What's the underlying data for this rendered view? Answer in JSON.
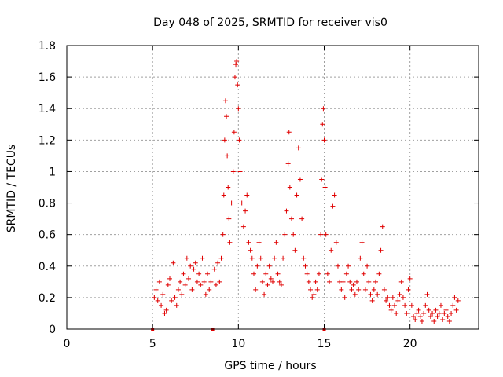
{
  "chart_data": {
    "type": "scatter",
    "title": "Day 048 of 2025, SRMTID for receiver vis0",
    "xlabel": "GPS time / hours",
    "ylabel": "SRMTID / TECUs",
    "xlim": [
      0,
      24
    ],
    "ylim": [
      0,
      1.8
    ],
    "x_ticks": [
      0,
      5,
      10,
      15,
      20
    ],
    "x_tick_labels": [
      "0",
      "5",
      "10",
      "15",
      "20"
    ],
    "y_ticks": [
      0,
      0.2,
      0.4,
      0.6,
      0.8,
      1,
      1.2,
      1.4,
      1.6,
      1.8
    ],
    "y_tick_labels": [
      "0",
      "0.2",
      "0.4",
      "0.6",
      "0.8",
      "1",
      "1.2",
      "1.4",
      "1.6",
      "1.8"
    ],
    "grid": true,
    "marker": "plus",
    "color": "#e00000",
    "series": [
      {
        "name": "SRMTID",
        "points": [
          [
            5.0,
            0.0
          ],
          [
            8.5,
            0.0
          ],
          [
            15.0,
            0.0
          ],
          [
            5.1,
            0.2
          ],
          [
            5.2,
            0.25
          ],
          [
            5.3,
            0.18
          ],
          [
            5.4,
            0.3
          ],
          [
            5.5,
            0.15
          ],
          [
            5.6,
            0.22
          ],
          [
            5.7,
            0.1
          ],
          [
            5.8,
            0.12
          ],
          [
            5.9,
            0.28
          ],
          [
            6.0,
            0.32
          ],
          [
            6.1,
            0.18
          ],
          [
            6.2,
            0.42
          ],
          [
            6.3,
            0.2
          ],
          [
            6.4,
            0.15
          ],
          [
            6.5,
            0.25
          ],
          [
            6.6,
            0.3
          ],
          [
            6.7,
            0.22
          ],
          [
            6.8,
            0.35
          ],
          [
            6.9,
            0.28
          ],
          [
            7.0,
            0.45
          ],
          [
            7.1,
            0.32
          ],
          [
            7.2,
            0.4
          ],
          [
            7.3,
            0.25
          ],
          [
            7.4,
            0.38
          ],
          [
            7.5,
            0.42
          ],
          [
            7.6,
            0.3
          ],
          [
            7.7,
            0.35
          ],
          [
            7.8,
            0.28
          ],
          [
            7.9,
            0.45
          ],
          [
            8.0,
            0.3
          ],
          [
            8.1,
            0.22
          ],
          [
            8.2,
            0.35
          ],
          [
            8.3,
            0.25
          ],
          [
            8.4,
            0.3
          ],
          [
            8.6,
            0.38
          ],
          [
            8.7,
            0.28
          ],
          [
            8.8,
            0.42
          ],
          [
            8.9,
            0.3
          ],
          [
            9.0,
            0.45
          ],
          [
            9.1,
            0.6
          ],
          [
            9.15,
            0.85
          ],
          [
            9.2,
            1.2
          ],
          [
            9.25,
            1.45
          ],
          [
            9.3,
            1.35
          ],
          [
            9.35,
            1.1
          ],
          [
            9.4,
            0.9
          ],
          [
            9.45,
            0.7
          ],
          [
            9.5,
            0.55
          ],
          [
            9.6,
            0.8
          ],
          [
            9.7,
            1.0
          ],
          [
            9.75,
            1.25
          ],
          [
            9.8,
            1.6
          ],
          [
            9.85,
            1.68
          ],
          [
            9.9,
            1.7
          ],
          [
            9.95,
            1.55
          ],
          [
            10.0,
            1.4
          ],
          [
            10.05,
            1.2
          ],
          [
            10.1,
            1.0
          ],
          [
            10.2,
            0.8
          ],
          [
            10.3,
            0.65
          ],
          [
            10.4,
            0.75
          ],
          [
            10.5,
            0.85
          ],
          [
            10.6,
            0.55
          ],
          [
            10.7,
            0.5
          ],
          [
            10.8,
            0.45
          ],
          [
            10.9,
            0.35
          ],
          [
            11.0,
            0.25
          ],
          [
            11.1,
            0.4
          ],
          [
            11.2,
            0.55
          ],
          [
            11.3,
            0.45
          ],
          [
            11.4,
            0.3
          ],
          [
            11.5,
            0.22
          ],
          [
            11.6,
            0.35
          ],
          [
            11.7,
            0.28
          ],
          [
            11.8,
            0.4
          ],
          [
            11.9,
            0.32
          ],
          [
            12.0,
            0.3
          ],
          [
            12.1,
            0.45
          ],
          [
            12.2,
            0.55
          ],
          [
            12.3,
            0.35
          ],
          [
            12.4,
            0.3
          ],
          [
            12.5,
            0.28
          ],
          [
            12.6,
            0.45
          ],
          [
            12.7,
            0.6
          ],
          [
            12.8,
            0.75
          ],
          [
            12.9,
            1.05
          ],
          [
            12.95,
            1.25
          ],
          [
            13.0,
            0.9
          ],
          [
            13.1,
            0.7
          ],
          [
            13.2,
            0.6
          ],
          [
            13.3,
            0.5
          ],
          [
            13.4,
            0.85
          ],
          [
            13.5,
            1.15
          ],
          [
            13.6,
            0.95
          ],
          [
            13.7,
            0.7
          ],
          [
            13.8,
            0.45
          ],
          [
            13.9,
            0.4
          ],
          [
            14.0,
            0.35
          ],
          [
            14.1,
            0.3
          ],
          [
            14.2,
            0.25
          ],
          [
            14.3,
            0.2
          ],
          [
            14.4,
            0.22
          ],
          [
            14.5,
            0.3
          ],
          [
            14.6,
            0.25
          ],
          [
            14.7,
            0.35
          ],
          [
            14.8,
            0.6
          ],
          [
            14.85,
            0.95
          ],
          [
            14.9,
            1.3
          ],
          [
            14.95,
            1.4
          ],
          [
            15.0,
            1.2
          ],
          [
            15.05,
            0.9
          ],
          [
            15.1,
            0.6
          ],
          [
            15.2,
            0.35
          ],
          [
            15.3,
            0.3
          ],
          [
            15.4,
            0.5
          ],
          [
            15.5,
            0.78
          ],
          [
            15.6,
            0.85
          ],
          [
            15.7,
            0.55
          ],
          [
            15.8,
            0.4
          ],
          [
            15.9,
            0.3
          ],
          [
            16.0,
            0.25
          ],
          [
            16.1,
            0.3
          ],
          [
            16.2,
            0.2
          ],
          [
            16.3,
            0.35
          ],
          [
            16.4,
            0.4
          ],
          [
            16.5,
            0.3
          ],
          [
            16.6,
            0.25
          ],
          [
            16.7,
            0.28
          ],
          [
            16.8,
            0.22
          ],
          [
            16.9,
            0.3
          ],
          [
            17.0,
            0.25
          ],
          [
            17.1,
            0.45
          ],
          [
            17.2,
            0.55
          ],
          [
            17.3,
            0.35
          ],
          [
            17.4,
            0.25
          ],
          [
            17.5,
            0.4
          ],
          [
            17.6,
            0.3
          ],
          [
            17.7,
            0.22
          ],
          [
            17.8,
            0.18
          ],
          [
            17.9,
            0.25
          ],
          [
            18.0,
            0.3
          ],
          [
            18.1,
            0.22
          ],
          [
            18.2,
            0.35
          ],
          [
            18.3,
            0.5
          ],
          [
            18.4,
            0.65
          ],
          [
            18.5,
            0.25
          ],
          [
            18.6,
            0.18
          ],
          [
            18.7,
            0.2
          ],
          [
            18.8,
            0.15
          ],
          [
            18.9,
            0.12
          ],
          [
            19.0,
            0.2
          ],
          [
            19.1,
            0.15
          ],
          [
            19.2,
            0.1
          ],
          [
            19.3,
            0.18
          ],
          [
            19.4,
            0.22
          ],
          [
            19.5,
            0.3
          ],
          [
            19.6,
            0.2
          ],
          [
            19.7,
            0.15
          ],
          [
            19.8,
            0.1
          ],
          [
            19.9,
            0.25
          ],
          [
            20.0,
            0.32
          ],
          [
            20.1,
            0.15
          ],
          [
            20.2,
            0.08
          ],
          [
            20.3,
            0.06
          ],
          [
            20.4,
            0.1
          ],
          [
            20.5,
            0.12
          ],
          [
            20.6,
            0.08
          ],
          [
            20.7,
            0.05
          ],
          [
            20.8,
            0.1
          ],
          [
            20.9,
            0.15
          ],
          [
            21.0,
            0.22
          ],
          [
            21.1,
            0.12
          ],
          [
            21.2,
            0.08
          ],
          [
            21.3,
            0.1
          ],
          [
            21.4,
            0.05
          ],
          [
            21.5,
            0.12
          ],
          [
            21.6,
            0.08
          ],
          [
            21.7,
            0.1
          ],
          [
            21.8,
            0.15
          ],
          [
            21.9,
            0.06
          ],
          [
            22.0,
            0.1
          ],
          [
            22.1,
            0.12
          ],
          [
            22.2,
            0.08
          ],
          [
            22.3,
            0.05
          ],
          [
            22.4,
            0.1
          ],
          [
            22.5,
            0.15
          ],
          [
            22.6,
            0.2
          ],
          [
            22.7,
            0.12
          ],
          [
            22.8,
            0.18
          ]
        ]
      }
    ]
  }
}
